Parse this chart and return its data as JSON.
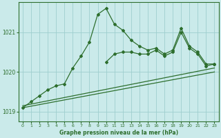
{
  "xlabel": "Graphe pression niveau de la mer (hPa)",
  "bg_color": "#caeaea",
  "grid_color": "#9ecece",
  "line_color": "#2d6e2d",
  "ylim": [
    1018.75,
    1021.75
  ],
  "yticks": [
    1019,
    1020,
    1021
  ],
  "xlim": [
    -0.5,
    23.5
  ],
  "xticks": [
    0,
    1,
    2,
    3,
    4,
    5,
    6,
    7,
    8,
    9,
    10,
    11,
    12,
    13,
    14,
    15,
    16,
    17,
    18,
    19,
    20,
    21,
    22,
    23
  ],
  "trend1_x": [
    0,
    23
  ],
  "trend1_y": [
    1019.1,
    1020.0
  ],
  "trend2_x": [
    0,
    23
  ],
  "trend2_y": [
    1019.15,
    1020.1
  ],
  "main_x": [
    0,
    1,
    2,
    3,
    4,
    5,
    6,
    7,
    8,
    9,
    10,
    11,
    12,
    13,
    14,
    15,
    16,
    17,
    18,
    19,
    20,
    21,
    22,
    23
  ],
  "main_y": [
    1019.1,
    1019.25,
    1019.4,
    1019.55,
    1019.65,
    1019.7,
    1020.1,
    1020.4,
    1020.75,
    1021.45,
    1021.6,
    1021.2,
    1021.05,
    1020.8,
    1020.65,
    1020.55,
    1020.6,
    1020.45,
    1020.55,
    1021.1,
    1020.65,
    1020.5,
    1020.2,
    1020.2
  ],
  "sec_x": [
    10,
    11,
    12,
    13,
    14,
    15,
    16,
    17,
    18,
    19,
    20,
    21,
    22,
    23
  ],
  "sec_y": [
    1020.25,
    1020.45,
    1020.5,
    1020.5,
    1020.45,
    1020.45,
    1020.55,
    1020.4,
    1020.5,
    1021.0,
    1020.6,
    1020.45,
    1020.15,
    1020.2
  ]
}
